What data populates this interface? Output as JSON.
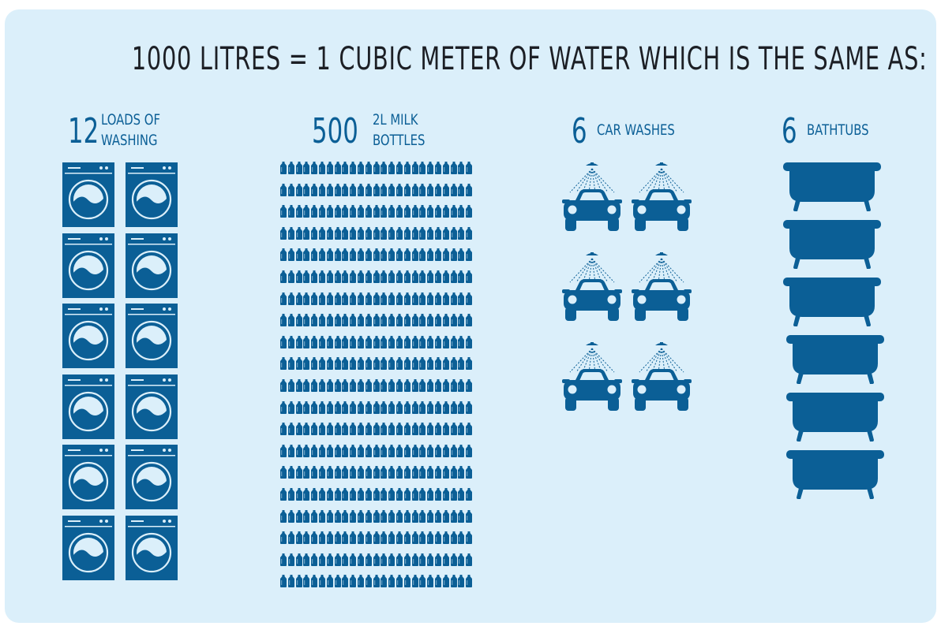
{
  "title": "1000 LITRES = 1 CUBIC METER OF WATER WHICH IS THE SAME AS:",
  "colors": {
    "background": "#dbeffa",
    "icon": "#0b5f96",
    "title": "#1c1f25"
  },
  "sections": [
    {
      "count": "12",
      "label_line1": "LOADS OF",
      "label_line2": "WASHING",
      "icon": "washing-machine-icon",
      "quantity": 12
    },
    {
      "count": "500",
      "label_line1": "2L MILK",
      "label_line2": "BOTTLES",
      "icon": "milk-bottle-icon",
      "quantity": 500
    },
    {
      "count": "6",
      "label_line1": "CAR WASHES",
      "label_line2": "",
      "icon": "car-wash-icon",
      "quantity": 6
    },
    {
      "count": "6",
      "label_line1": "BATHTUBS",
      "label_line2": "",
      "icon": "bathtub-icon",
      "quantity": 6
    }
  ]
}
